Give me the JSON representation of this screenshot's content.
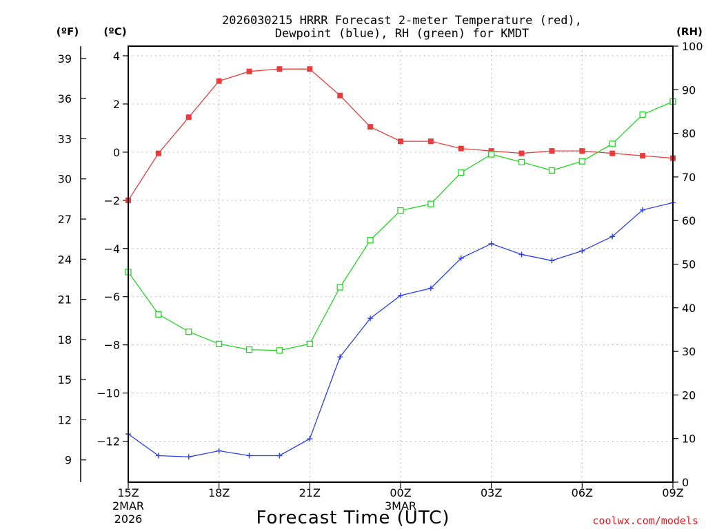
{
  "chart_data": {
    "type": "line",
    "title_line1": "2026030215 HRRR Forecast 2-meter Temperature (red),",
    "title_line2": "Dewpoint (blue), RH (green) for KMDT",
    "xlabel": "Forecast Time (UTC)",
    "credit": "coolwx.com/models",
    "units": {
      "f": "(ºF)",
      "c": "(ºC)",
      "rh": "(RH)"
    },
    "x_hours": [
      0,
      1,
      2,
      3,
      4,
      5,
      6,
      7,
      8,
      9,
      10,
      11,
      12,
      13,
      14,
      15,
      16,
      17,
      18
    ],
    "x_ticks": [
      {
        "label": "15Z",
        "date": "2MAR",
        "year": "2026"
      },
      {
        "label": "18Z",
        "date": "",
        "year": ""
      },
      {
        "label": "21Z",
        "date": "",
        "year": ""
      },
      {
        "label": "00Z",
        "date": "3MAR",
        "year": ""
      },
      {
        "label": "03Z",
        "date": "",
        "year": ""
      },
      {
        "label": "06Z",
        "date": "",
        "year": ""
      },
      {
        "label": "09Z",
        "date": "",
        "year": ""
      }
    ],
    "ylim_c": [
      -13.7,
      4.4
    ],
    "ylim_rh": [
      0,
      100
    ],
    "yticks_c": [
      "4",
      "2",
      "0",
      "−2",
      "−4",
      "−6",
      "−8",
      "−10",
      "−12"
    ],
    "yticks_f": [
      "39",
      "36",
      "33",
      "30",
      "27",
      "24",
      "21",
      "18",
      "15",
      "12",
      "9"
    ],
    "yticks_rh": [
      "100",
      "90",
      "80",
      "70",
      "60",
      "50",
      "40",
      "30",
      "20",
      "10",
      "0"
    ],
    "series": [
      {
        "name": "Temperature (ºC)",
        "color": "#e83c3c",
        "marker": "filled-square",
        "values": [
          -2.0,
          -0.05,
          1.45,
          2.95,
          3.35,
          3.45,
          3.45,
          2.35,
          1.05,
          0.45,
          0.45,
          0.15,
          0.05,
          -0.05,
          0.05,
          0.05,
          -0.05,
          -0.15,
          -0.25
        ]
      },
      {
        "name": "Dewpoint (ºC)",
        "color": "#2a3ee6",
        "marker": "plus",
        "values": [
          -11.7,
          -12.6,
          -12.65,
          -12.4,
          -12.6,
          -12.6,
          -11.9,
          -8.5,
          -6.9,
          -5.95,
          -5.65,
          -4.4,
          -3.8,
          -4.25,
          -4.5,
          -4.1,
          -3.5,
          -2.4,
          -2.1
        ]
      },
      {
        "name": "RH (%)",
        "color": "#22d624",
        "marker": "open-square",
        "values": [
          48.2,
          38.5,
          34.5,
          31.7,
          30.4,
          30.2,
          31.7,
          44.7,
          55.5,
          62.3,
          63.8,
          71.0,
          75.2,
          73.4,
          71.5,
          73.6,
          77.6,
          84.3,
          87.3
        ]
      }
    ]
  }
}
